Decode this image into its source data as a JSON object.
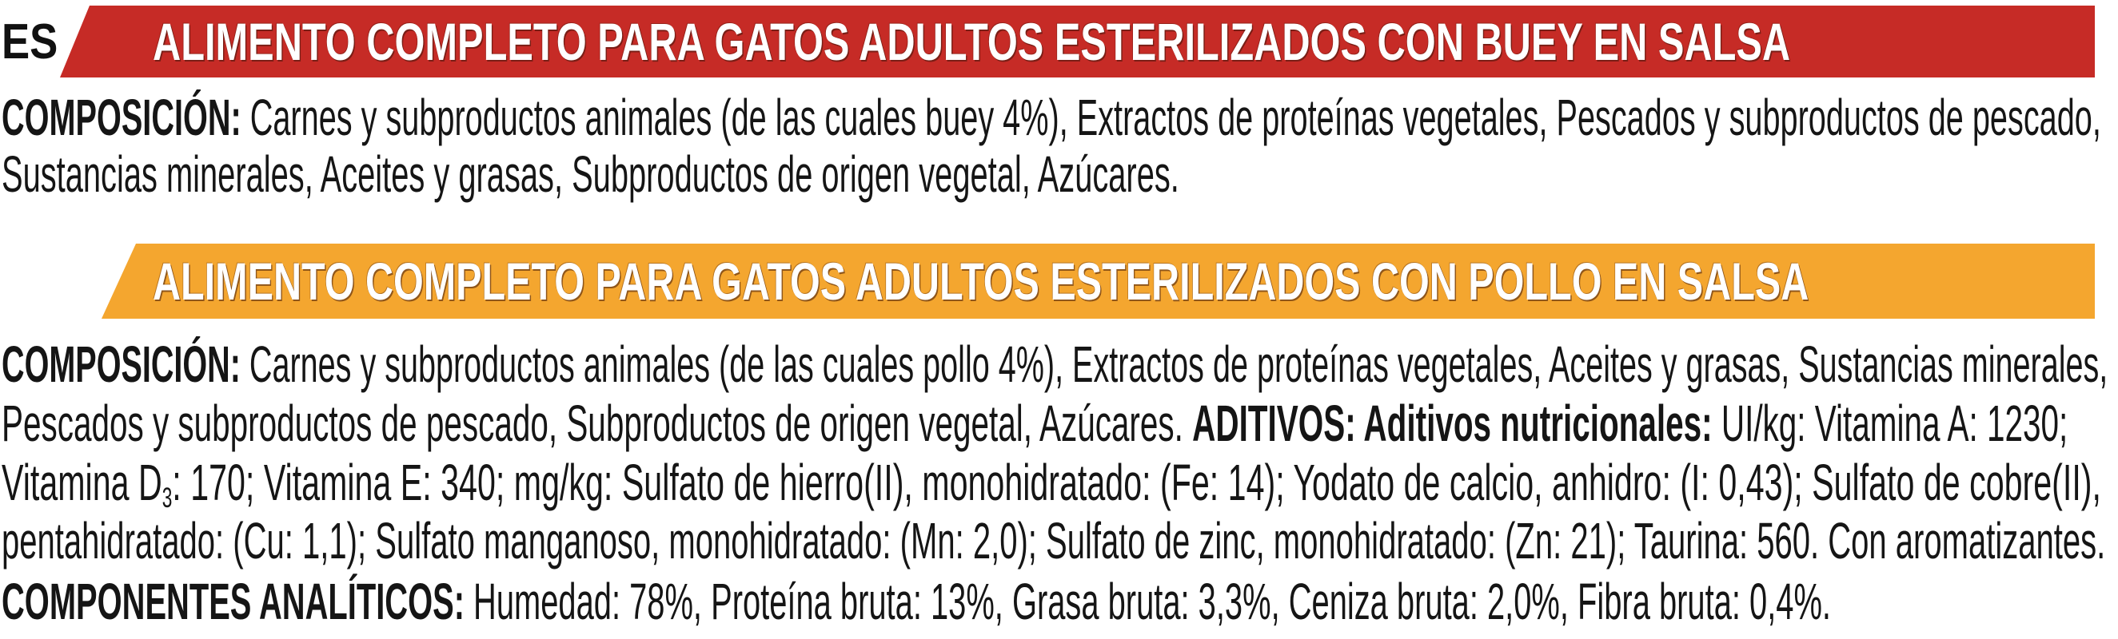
{
  "language_code": "ES",
  "colors": {
    "beef_banner": "#c62b26",
    "chicken_banner": "#f4a62f",
    "banner_text": "#ffffff",
    "body_text": "#151515"
  },
  "sections": [
    {
      "title": "ALIMENTO COMPLETO PARA GATOS ADULTOS ESTERILIZADOS CON BUEY EN SALSA",
      "lines": [
        [
          {
            "t": "COMPOSICIÓN:",
            "b": true
          },
          {
            "t": " Carnes y subproductos animales (de las cuales buey 4%), Extractos de proteínas vegetales, Pescados y subproductos de pescado,"
          }
        ],
        [
          {
            "t": "Sustancias minerales, Aceites y grasas, Subproductos de origen vegetal, Azúcares."
          }
        ]
      ]
    },
    {
      "title": "ALIMENTO COMPLETO PARA GATOS ADULTOS ESTERILIZADOS CON POLLO EN SALSA",
      "lines": [
        [
          {
            "t": "COMPOSICIÓN:",
            "b": true
          },
          {
            "t": " Carnes y subproductos animales (de las cuales pollo 4%), Extractos de proteínas vegetales, Aceites y grasas, Sustancias minerales,"
          }
        ],
        [
          {
            "t": "Pescados y subproductos de pescado, Subproductos de origen vegetal, Azúcares. "
          },
          {
            "t": "ADITIVOS: Aditivos nutricionales:",
            "b": true
          },
          {
            "t": " UI/kg: Vitamina A: 1230;"
          }
        ],
        [
          {
            "t": "Vitamina D"
          },
          {
            "t": "3",
            "sub": true
          },
          {
            "t": ": 170; Vitamina E: 340; mg/kg: Sulfato de hierro(II), monohidratado: (Fe: 14); Yodato de calcio, anhidro: (I: 0,43); Sulfato de cobre(II),"
          }
        ],
        [
          {
            "t": "pentahidratado: (Cu: 1,1); Sulfato manganoso, monohidratado: (Mn: 2,0); Sulfato de zinc, monohidratado: (Zn: 21); Taurina: 560. Con aromatizantes."
          }
        ],
        [
          {
            "t": "COMPONENTES ANALÍTICOS:",
            "b": true
          },
          {
            "t": " Humedad: 78%, Proteína bruta: 13%, Grasa bruta: 3,3%, Ceniza bruta: 2,0%, Fibra bruta: 0,4%."
          }
        ]
      ]
    }
  ]
}
